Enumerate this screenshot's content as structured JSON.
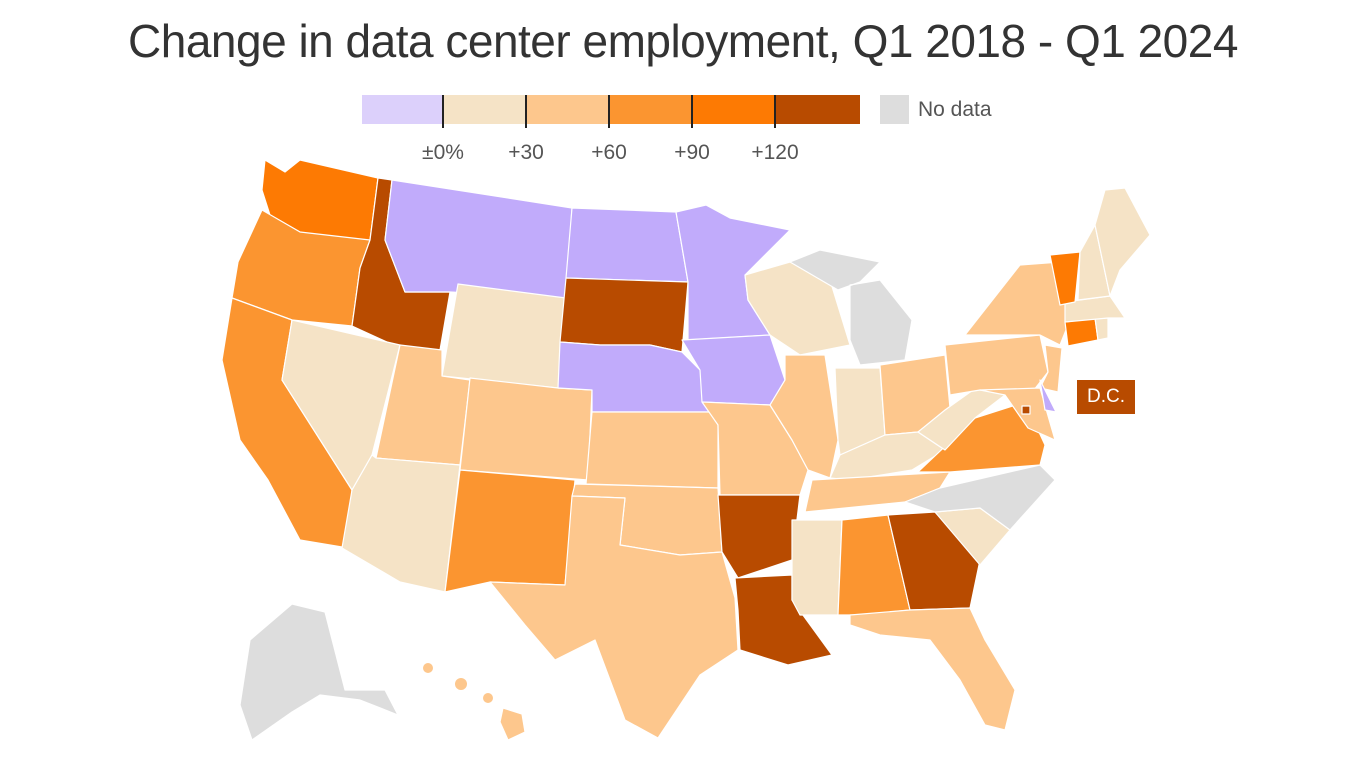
{
  "title": "Change in data center employment, Q1 2018 - Q1 2024",
  "legend": {
    "bins": [
      {
        "range": "below ±0%",
        "color": "#dcd0fb"
      },
      {
        "range": "±0% to +30",
        "color": "#f5e3c6"
      },
      {
        "range": "+30 to +60",
        "color": "#fdc78d"
      },
      {
        "range": "+60 to +90",
        "color": "#fb9530"
      },
      {
        "range": "+90 to +120",
        "color": "#fd7a03"
      },
      {
        "range": "+120 and above",
        "color": "#b84b00"
      }
    ],
    "tick_labels": [
      "±0%",
      "+30",
      "+60",
      "+90",
      "+120"
    ],
    "no_data_label": "No data",
    "no_data_color": "#dddddd"
  },
  "map_colors": {
    "decline": "#c1abfb",
    "bin_0_30": "#f5e3c6",
    "bin_30_60": "#fdc78d",
    "bin_60_90": "#fb9530",
    "bin_90_120": "#fd7a03",
    "bin_120_plus": "#b84b00",
    "no_data": "#dddddd"
  },
  "states": [
    {
      "name": "WA",
      "bin": "bin_90_120"
    },
    {
      "name": "OR",
      "bin": "bin_60_90"
    },
    {
      "name": "CA",
      "bin": "bin_60_90"
    },
    {
      "name": "ID",
      "bin": "bin_120_plus"
    },
    {
      "name": "NV",
      "bin": "bin_0_30"
    },
    {
      "name": "MT",
      "bin": "decline"
    },
    {
      "name": "WY",
      "bin": "bin_0_30"
    },
    {
      "name": "UT",
      "bin": "bin_30_60"
    },
    {
      "name": "AZ",
      "bin": "bin_0_30"
    },
    {
      "name": "CO",
      "bin": "bin_30_60"
    },
    {
      "name": "NM",
      "bin": "bin_60_90"
    },
    {
      "name": "ND",
      "bin": "decline"
    },
    {
      "name": "SD",
      "bin": "bin_120_plus"
    },
    {
      "name": "NE",
      "bin": "decline"
    },
    {
      "name": "KS",
      "bin": "bin_30_60"
    },
    {
      "name": "OK",
      "bin": "bin_30_60"
    },
    {
      "name": "TX",
      "bin": "bin_30_60"
    },
    {
      "name": "MN",
      "bin": "decline"
    },
    {
      "name": "IA",
      "bin": "decline"
    },
    {
      "name": "MO",
      "bin": "bin_30_60"
    },
    {
      "name": "AR",
      "bin": "bin_120_plus"
    },
    {
      "name": "LA",
      "bin": "bin_120_plus"
    },
    {
      "name": "WI",
      "bin": "bin_0_30"
    },
    {
      "name": "IL",
      "bin": "bin_30_60"
    },
    {
      "name": "MI",
      "bin": "no_data"
    },
    {
      "name": "IN",
      "bin": "bin_0_30"
    },
    {
      "name": "OH",
      "bin": "bin_30_60"
    },
    {
      "name": "KY",
      "bin": "bin_0_30"
    },
    {
      "name": "TN",
      "bin": "bin_30_60"
    },
    {
      "name": "MS",
      "bin": "bin_0_30"
    },
    {
      "name": "AL",
      "bin": "bin_60_90"
    },
    {
      "name": "GA",
      "bin": "bin_120_plus"
    },
    {
      "name": "FL",
      "bin": "bin_30_60"
    },
    {
      "name": "SC",
      "bin": "bin_0_30"
    },
    {
      "name": "NC",
      "bin": "no_data"
    },
    {
      "name": "VA",
      "bin": "bin_60_90"
    },
    {
      "name": "WV",
      "bin": "bin_0_30"
    },
    {
      "name": "PA",
      "bin": "bin_30_60"
    },
    {
      "name": "NY",
      "bin": "bin_30_60"
    },
    {
      "name": "NJ",
      "bin": "bin_30_60"
    },
    {
      "name": "DE",
      "bin": "decline"
    },
    {
      "name": "MD",
      "bin": "bin_30_60"
    },
    {
      "name": "CT",
      "bin": "bin_90_120"
    },
    {
      "name": "RI",
      "bin": "bin_0_30"
    },
    {
      "name": "MA",
      "bin": "bin_0_30"
    },
    {
      "name": "VT",
      "bin": "bin_90_120"
    },
    {
      "name": "NH",
      "bin": "bin_0_30"
    },
    {
      "name": "ME",
      "bin": "bin_0_30"
    },
    {
      "name": "AK",
      "bin": "no_data"
    },
    {
      "name": "HI",
      "bin": "bin_30_60"
    },
    {
      "name": "DC",
      "bin": "bin_120_plus"
    }
  ],
  "dc_label": "D.C."
}
